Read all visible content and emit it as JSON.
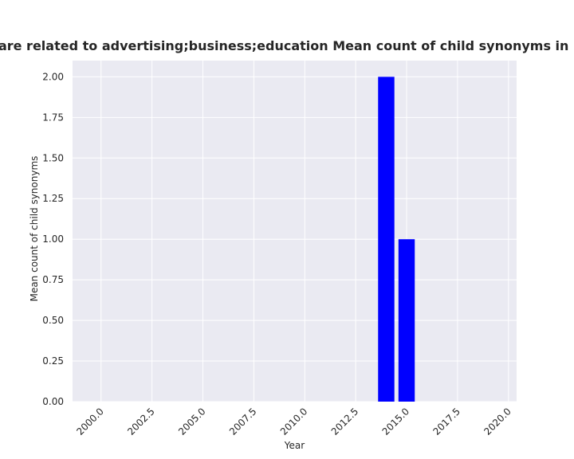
{
  "chart_data": {
    "type": "bar",
    "title": "Categories are related to advertising;business;education Mean count of child synonyms in privacy policy",
    "xlabel": "Year",
    "ylabel": "Mean count of child synonyms",
    "x": [
      2014,
      2015
    ],
    "values": [
      2.0,
      1.0
    ],
    "bar_width": 0.8,
    "xlim": [
      1998.6,
      2020.4
    ],
    "ylim": [
      0,
      2.1
    ],
    "xticks": [
      2000.0,
      2002.5,
      2005.0,
      2007.5,
      2010.0,
      2012.5,
      2015.0,
      2017.5,
      2020.0
    ],
    "xtick_labels": [
      "2000.0",
      "2002.5",
      "2005.0",
      "2007.5",
      "2010.0",
      "2012.5",
      "2015.0",
      "2017.5",
      "2020.0"
    ],
    "yticks": [
      0.0,
      0.25,
      0.5,
      0.75,
      1.0,
      1.25,
      1.5,
      1.75,
      2.0
    ],
    "ytick_labels": [
      "0.00",
      "0.25",
      "0.50",
      "0.75",
      "1.00",
      "1.25",
      "1.50",
      "1.75",
      "2.00"
    ],
    "grid": true,
    "colors": {
      "bar": "#0000ff",
      "plot_background": "#eaeaf2",
      "grid": "#ffffff",
      "text": "#262626"
    }
  }
}
